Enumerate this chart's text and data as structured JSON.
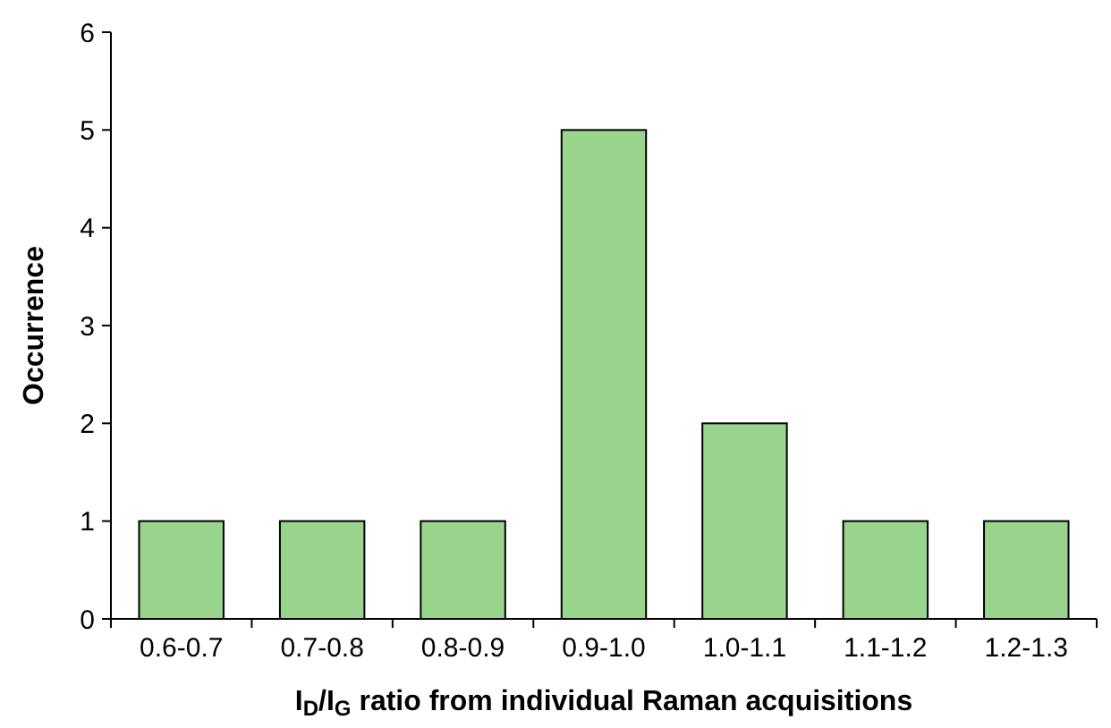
{
  "chart_data": {
    "type": "bar",
    "categories": [
      "0.6-0.7",
      "0.7-0.8",
      "0.8-0.9",
      "0.9-1.0",
      "1.0-1.1",
      "1.1-1.2",
      "1.2-1.3"
    ],
    "values": [
      1,
      1,
      1,
      5,
      2,
      1,
      1
    ],
    "color": "#98d48c",
    "xlabel": "I$_{D}$/I$_{G}$ ratio from individual Raman acquisitions",
    "ylabel": "Occurrence",
    "ylim": [
      0,
      6
    ],
    "yticks": [
      0,
      1,
      2,
      3,
      4,
      5,
      6
    ],
    "grid": false
  }
}
